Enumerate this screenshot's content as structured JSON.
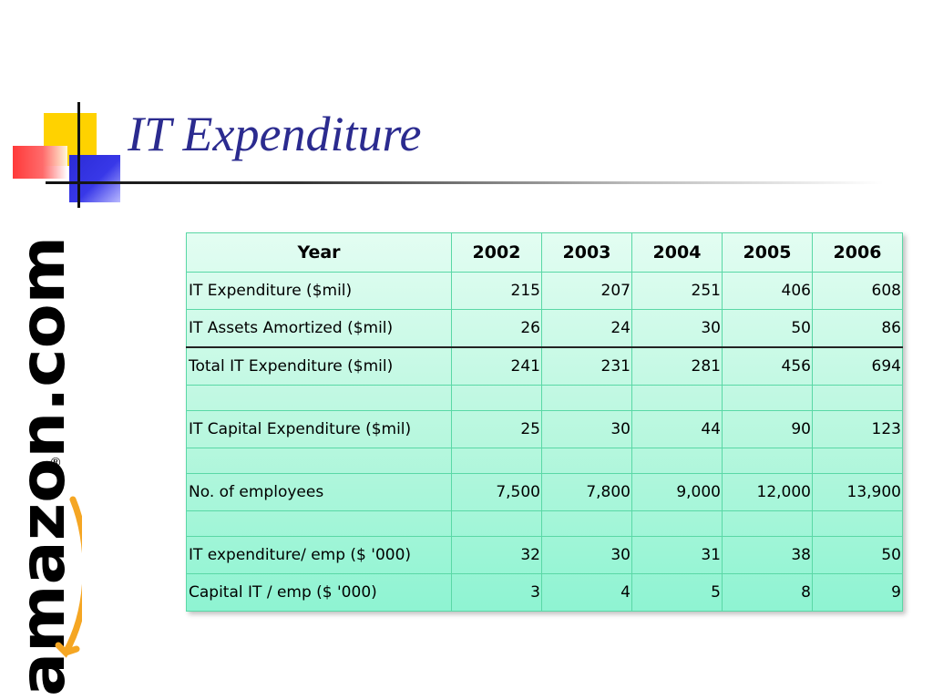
{
  "slide": {
    "title": "IT Expenditure"
  },
  "logo": {
    "text": "amazon.com",
    "registered_mark": "®"
  },
  "table": {
    "headers": [
      "Year",
      "2002",
      "2003",
      "2004",
      "2005",
      "2006"
    ],
    "rows": [
      {
        "label": "IT Expenditure ($mil)",
        "values": [
          "215",
          "207",
          "251",
          "406",
          "608"
        ]
      },
      {
        "label": "IT Assets Amortized ($mil)",
        "values": [
          "26",
          "24",
          "30",
          "50",
          "86"
        ]
      },
      {
        "label": "Total IT Expenditure ($mil)",
        "values": [
          "241",
          "231",
          "281",
          "456",
          "694"
        ]
      },
      {
        "label": "",
        "values": [
          "",
          "",
          "",
          "",
          ""
        ]
      },
      {
        "label": "IT Capital Expenditure ($mil)",
        "values": [
          "25",
          "30",
          "44",
          "90",
          "123"
        ]
      },
      {
        "label": "",
        "values": [
          "",
          "",
          "",
          "",
          ""
        ]
      },
      {
        "label": "No. of employees",
        "values": [
          "7,500",
          "7,800",
          "9,000",
          "12,000",
          "13,900"
        ]
      },
      {
        "label": "",
        "values": [
          "",
          "",
          "",
          "",
          ""
        ]
      },
      {
        "label": "IT expenditure/ emp ($ '000)",
        "values": [
          "32",
          "30",
          "31",
          "38",
          "50"
        ]
      },
      {
        "label": "Capital IT / emp ($ '000)",
        "values": [
          "3",
          "4",
          "5",
          "8",
          "9"
        ]
      }
    ]
  },
  "colors": {
    "title": "#2b2b8f",
    "table_fill_top": "#e3fdf2",
    "table_fill_bottom": "#8ef4d2",
    "table_border": "#5ad8a6",
    "logo_text": "#000000",
    "logo_smile": "#f5a623"
  }
}
